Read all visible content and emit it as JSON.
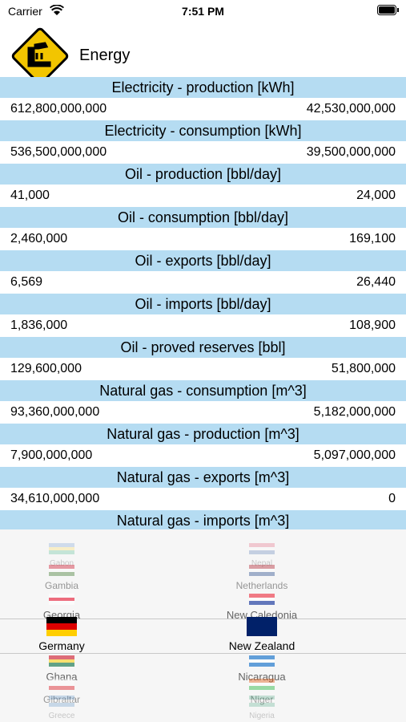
{
  "status_bar": {
    "carrier": "Carrier",
    "time": "7:51 PM"
  },
  "header": {
    "title": "Energy"
  },
  "rows": [
    {
      "title": "Electricity - production [kWh]",
      "left": "612,800,000,000",
      "right": "42,530,000,000"
    },
    {
      "title": "Electricity - consumption [kWh]",
      "left": "536,500,000,000",
      "right": "39,500,000,000"
    },
    {
      "title": "Oil - production [bbl/day]",
      "left": "41,000",
      "right": "24,000"
    },
    {
      "title": "Oil - consumption [bbl/day]",
      "left": "2,460,000",
      "right": "169,100"
    },
    {
      "title": "Oil - exports [bbl/day]",
      "left": "6,569",
      "right": "26,440"
    },
    {
      "title": "Oil - imports [bbl/day]",
      "left": "1,836,000",
      "right": "108,900"
    },
    {
      "title": "Oil - proved reserves [bbl]",
      "left": "129,600,000",
      "right": "51,800,000"
    },
    {
      "title": "Natural gas - consumption [m^3]",
      "left": "93,360,000,000",
      "right": "5,182,000,000"
    },
    {
      "title": "Natural gas - production [m^3]",
      "left": "7,900,000,000",
      "right": "5,097,000,000"
    },
    {
      "title": "Natural gas - exports [m^3]",
      "left": "34,610,000,000",
      "right": "0"
    },
    {
      "title": "Natural gas - imports [m^3]"
    }
  ],
  "picker": {
    "left": [
      "Gabon",
      "Gambia",
      "Georgia",
      "Germany",
      "Ghana",
      "Gibraltar",
      "Greece"
    ],
    "right": [
      "Nepal",
      "Netherlands",
      "New Caledonia",
      "New Zealand",
      "Nicaragua",
      "Niger",
      "Nigeria"
    ]
  }
}
